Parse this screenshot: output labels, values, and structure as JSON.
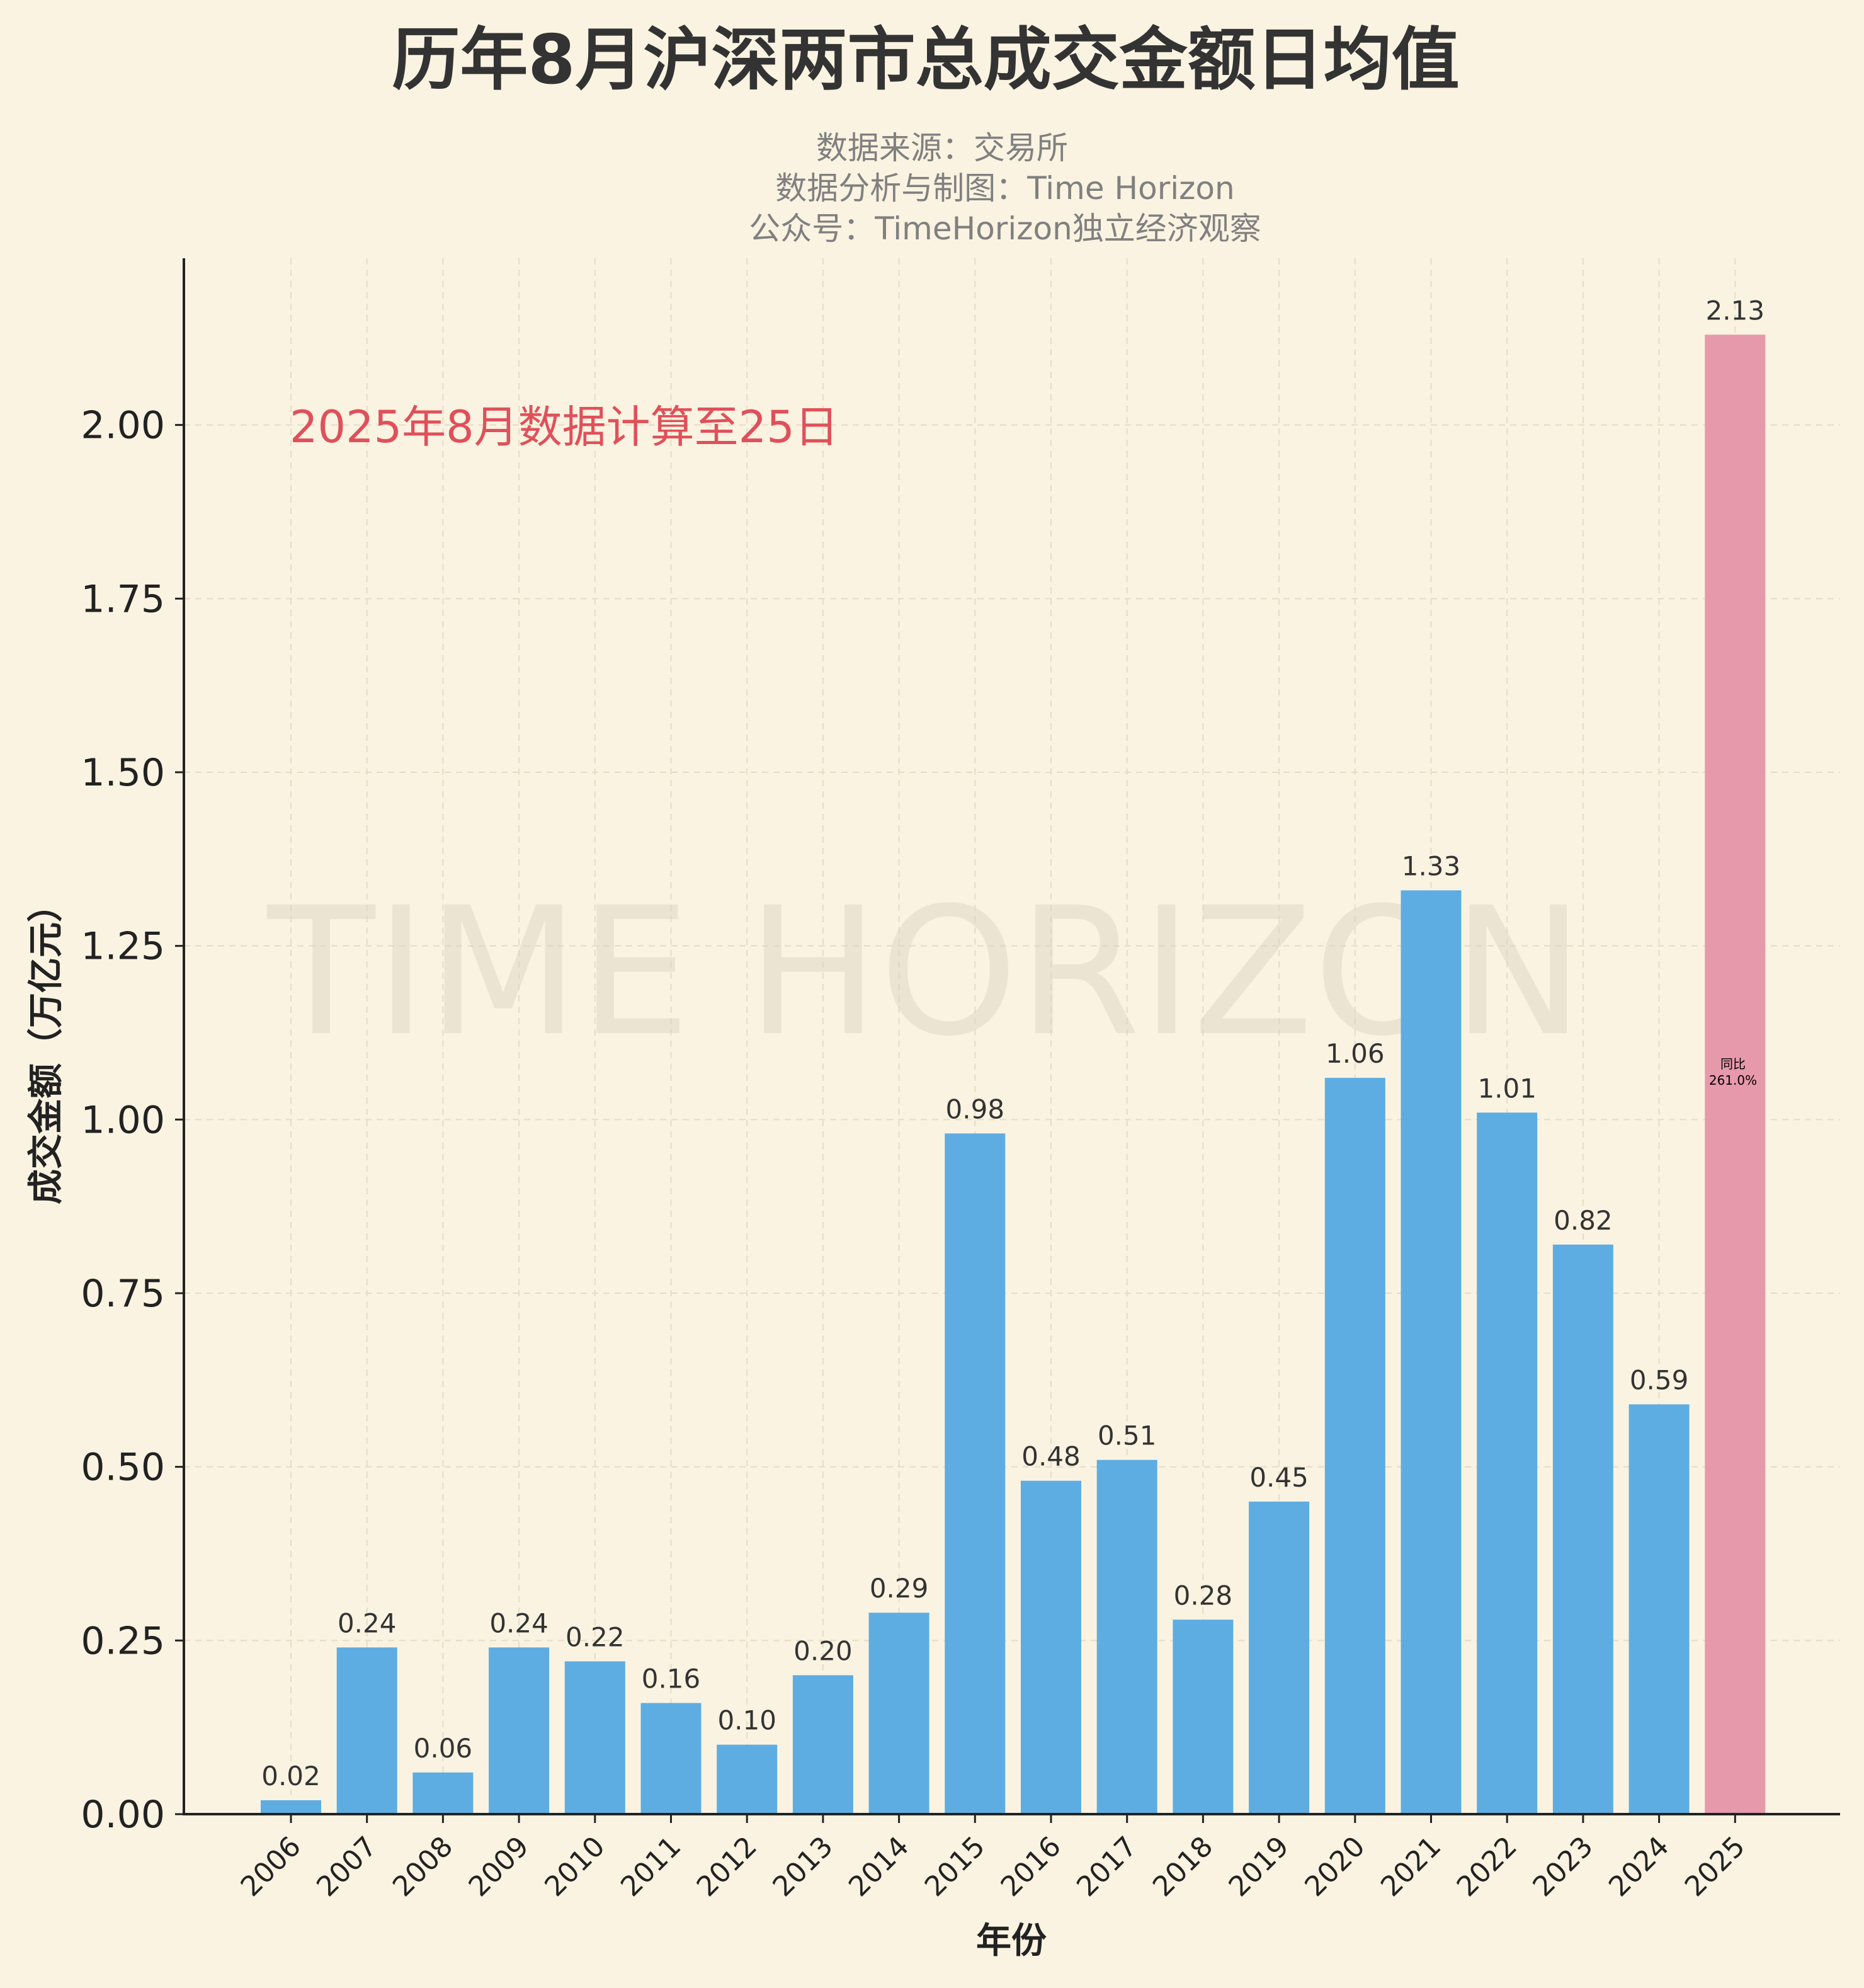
{
  "chart_data": {
    "type": "bar",
    "title": "历年8月沪深两市总成交金额日均值",
    "subtitle_lines": [
      "数据来源：交易所",
      "数据分析与制图：Time Horizon",
      "公众号：TimeHorizon独立经济观察"
    ],
    "xlabel": "年份",
    "ylabel": "成交金额（万亿元）",
    "categories": [
      "2006",
      "2007",
      "2008",
      "2009",
      "2010",
      "2011",
      "2012",
      "2013",
      "2014",
      "2015",
      "2016",
      "2017",
      "2018",
      "2019",
      "2020",
      "2021",
      "2022",
      "2023",
      "2024",
      "2025"
    ],
    "values": [
      0.02,
      0.24,
      0.06,
      0.24,
      0.22,
      0.16,
      0.1,
      0.2,
      0.29,
      0.98,
      0.48,
      0.51,
      0.28,
      0.45,
      1.06,
      1.33,
      1.01,
      0.82,
      0.59,
      2.13
    ],
    "value_labels": [
      "0.02",
      "0.24",
      "0.06",
      "0.24",
      "0.22",
      "0.16",
      "0.10",
      "0.20",
      "0.29",
      "0.98",
      "0.48",
      "0.51",
      "0.28",
      "0.45",
      "1.06",
      "1.33",
      "1.01",
      "0.82",
      "0.59",
      "2.13"
    ],
    "yticks": [
      "0.00",
      "0.25",
      "0.50",
      "0.75",
      "1.00",
      "1.25",
      "1.50",
      "1.75",
      "2.00"
    ],
    "ylim": [
      0,
      2.24
    ],
    "grid": true,
    "colors": {
      "bar": "#5dade2",
      "highlight": "#e699ab",
      "note": "#e0505a",
      "background": "#faf3e1"
    },
    "highlight_index": 19,
    "note": "2025年8月数据计算至25日",
    "yoy_label": "同比",
    "yoy_value": "261.0%",
    "watermark": "TIME HORIZON"
  }
}
